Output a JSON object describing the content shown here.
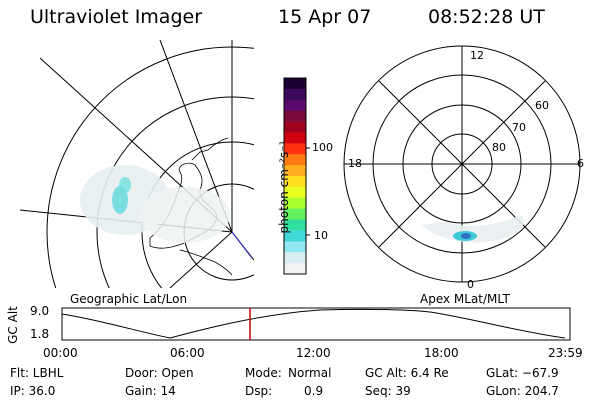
{
  "header": {
    "instrument": "Ultraviolet Imager",
    "date": "15 Apr 07",
    "time": "08:52:28 UT"
  },
  "left_panel": {
    "label": "Geographic Lat/Lon"
  },
  "right_panel": {
    "label": "Apex MLat/MLT",
    "mlt_labels": [
      "12",
      "18",
      "6",
      "0"
    ],
    "lat_labels": [
      "60",
      "70",
      "80"
    ]
  },
  "colorbar": {
    "unit_label": "photon cm⁻²s⁻¹",
    "tick_labels": [
      "100",
      "10"
    ],
    "colors": [
      "#1a0033",
      "#3b0a5a",
      "#5a0a6e",
      "#7a0a3a",
      "#a00020",
      "#d00010",
      "#ff3010",
      "#ff7a10",
      "#ffb020",
      "#ffe020",
      "#e8ff20",
      "#a8ff30",
      "#60f060",
      "#30e0a0",
      "#40d8d8",
      "#90e8f0",
      "#d8eef0",
      "#f2f2f2"
    ]
  },
  "altitude_plot": {
    "ylabel": "GC Alt",
    "y_ticks": [
      "9.0",
      "1.8"
    ],
    "x_ticks": [
      "00:00",
      "06:00",
      "12:00",
      "18:00",
      "23:59"
    ],
    "current_time_fraction": 0.37,
    "marker_color": "#cc0000"
  },
  "info": {
    "filter": "Flt: LBHL",
    "door": "Door: Open",
    "mode_label": "Mode:",
    "mode_value": "Normal",
    "gc_alt": "GC Alt: 6.4 Re",
    "glat": "GLat: −67.9",
    "ip": "IP: 36.0",
    "gain": "Gain: 14",
    "dsp_label": "Dsp:",
    "dsp_value": "0.9",
    "seq": "Seq: 39",
    "glon": "GLon: 204.7"
  }
}
